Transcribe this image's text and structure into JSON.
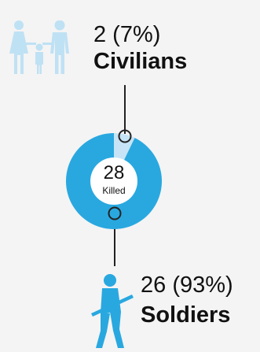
{
  "chart_data": {
    "type": "pie",
    "categories": [
      "Civilians",
      "Soldiers"
    ],
    "values": [
      2,
      26
    ],
    "percent_labels": [
      "2 (7%)",
      "26 (93%)"
    ],
    "center_value": "28",
    "center_label": "Killed",
    "colors": {
      "civilians": "#c6e4f5",
      "soldiers": "#29a8e0",
      "icons_civilians": "#bfe1f4",
      "icons_soldiers": "#29a8e0",
      "connector": "#222222"
    },
    "icons": [
      "family-icon",
      "soldier-icon"
    ]
  }
}
